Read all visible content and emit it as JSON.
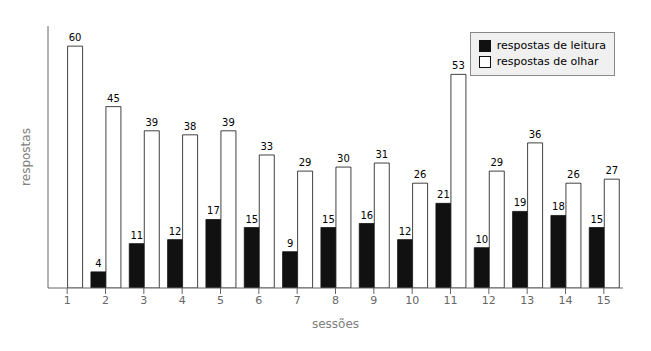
{
  "chart_data": {
    "type": "bar",
    "categories": [
      "1",
      "2",
      "3",
      "4",
      "5",
      "6",
      "7",
      "8",
      "9",
      "10",
      "11",
      "12",
      "13",
      "14",
      "15"
    ],
    "series": [
      {
        "name": "respostas de leitura",
        "color": "#111111",
        "values": [
          0,
          4,
          11,
          12,
          17,
          15,
          9,
          15,
          16,
          12,
          21,
          10,
          19,
          18,
          15
        ]
      },
      {
        "name": "respostas de olhar",
        "color": "#ffffff",
        "values": [
          60,
          45,
          39,
          38,
          39,
          33,
          29,
          30,
          31,
          26,
          53,
          29,
          36,
          26,
          27
        ]
      }
    ],
    "xlabel": "sessões",
    "ylabel": "respostas",
    "ylim": [
      0,
      65
    ],
    "tick_labels": "x",
    "data_labels": true,
    "legend": "upper right",
    "grid": false
  }
}
